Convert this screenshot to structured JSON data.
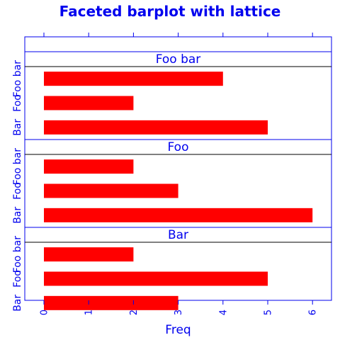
{
  "chart_data": {
    "type": "bar",
    "orientation": "horizontal",
    "title": "Faceted barplot with lattice",
    "xlabel": "Freq",
    "ylabel": "",
    "xlim": [
      0,
      6
    ],
    "x_ticks": [
      "0",
      "1",
      "2",
      "3",
      "4",
      "5",
      "6"
    ],
    "categories": [
      "Bar",
      "Foo",
      "Foo bar"
    ],
    "bar_color": "#ff0000",
    "text_color": "#0000ee",
    "panels": [
      {
        "name": "Foo bar",
        "values": [
          5,
          2,
          4
        ]
      },
      {
        "name": "Foo",
        "values": [
          6,
          3,
          2
        ]
      },
      {
        "name": "Bar",
        "values": [
          3,
          5,
          2
        ]
      }
    ]
  }
}
